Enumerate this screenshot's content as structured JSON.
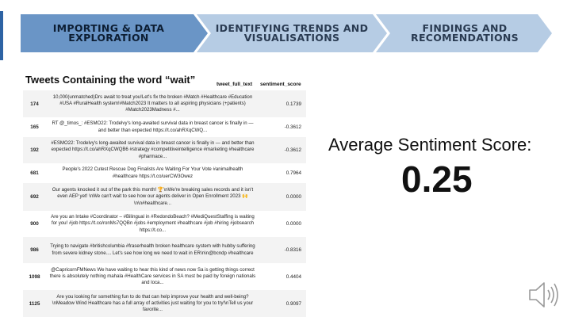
{
  "steps": [
    {
      "label": "IMPORTING & DATA EXPLORATION",
      "line1": "IMPORTING & DATA",
      "line2": "EXPLORATION",
      "state": "active"
    },
    {
      "label": "IDENTIFYING TRENDS AND VISUALISATIONS",
      "line1": "IDENTIFYING TRENDS AND",
      "line2": "VISUALISATIONS",
      "state": "inactive"
    },
    {
      "label": "FINDINGS AND RECOMENDATIONS",
      "line1": "FINDINGS AND",
      "line2": "RECOMENDATIONS",
      "state": "inactive"
    }
  ],
  "colors": {
    "step_active_fill": "#6a95c6",
    "step_active_text": "#0d1e33",
    "step_inactive_fill": "#b6cce4",
    "step_inactive_text": "#2a3b52",
    "accent_bar": "#2e63a4"
  },
  "table": {
    "title": "Tweets Containing the word “wait”",
    "columns": [
      "tweet_full_text",
      "sentiment_score"
    ],
    "rows": [
      {
        "index": "174",
        "text": "10,000(unmatched)Drs await to treat you!Let's fix the broken #Match #Healthcare #Education #USA #RuralHealth system!#Match2023 It matters to all aspiring physicians (+patients) #Match2023Madness #...",
        "score": "0.1739"
      },
      {
        "index": "165",
        "text": "RT @_timos_: #ESMO22: Trodelvy's long-awaited survival data in breast cancer is finally in — and better than expected https://t.co/ahRXqCWQ...",
        "score": "-0.3612"
      },
      {
        "index": "192",
        "text": "#ESMO22: Trodelvy's long-awaited survival data in breast cancer is finally in — and better than expected https://t.co/ahRXqCWQB6 #strategy #competitiveintelligence #marketing #healthcare #pharmace...",
        "score": "-0.3612"
      },
      {
        "index": "681",
        "text": "People's 2022 Cutest Rescue Dog Finalists Are Waiting For Your Vote #animalhealth #healthcare https://t.co/uerCW3Owez",
        "score": "0.7964"
      },
      {
        "index": "692",
        "text": "Our agents knocked it out of the park this month! 🏆\\nWe're breaking sales records and it isn't even AEP yet! \\nWe can't wait to see how our agents deliver in Open Enrollment 2023 🙌\\n\\n#healthcare...",
        "score": "0.0000"
      },
      {
        "index": "900",
        "text": "Are you an Intake #Coordinator – #Bilingual in #RedondoBeach? #MediQuestStaffing is waiting for you! #job https://t.co/ronMs7QQBn #jobs #employment #healthcare #job #hiring #jobsearch https://t.co...",
        "score": "0.0000"
      },
      {
        "index": "986",
        "text": "Trying to navigate #britishcolumbia #fraserhealth broken healthcare system with hubby suffering from severe kidney stone.... Let's see how long we need to wait in ER\\n\\n@bcndp #healthcare",
        "score": "-0.8316"
      },
      {
        "index": "1098",
        "text": "@CapricornFMNews We have waiting to hear this kind of news now Sa is getting things correct there is absolutely nothing mahala #HealthCare services in SA must be paid by foreign nationals and loca...",
        "score": "0.4404"
      },
      {
        "index": "1125",
        "text": "Are you looking for something fun to do that can help improve your health and well-being?\\nMeadow Wind Healthcare has a full array of activities just waiting for you to try!\\nTell us your favorite...",
        "score": "0.9097"
      }
    ]
  },
  "summary": {
    "label": "Average Sentiment Score:",
    "value": "0.25"
  },
  "audio": {
    "icon": "speaker-icon"
  }
}
